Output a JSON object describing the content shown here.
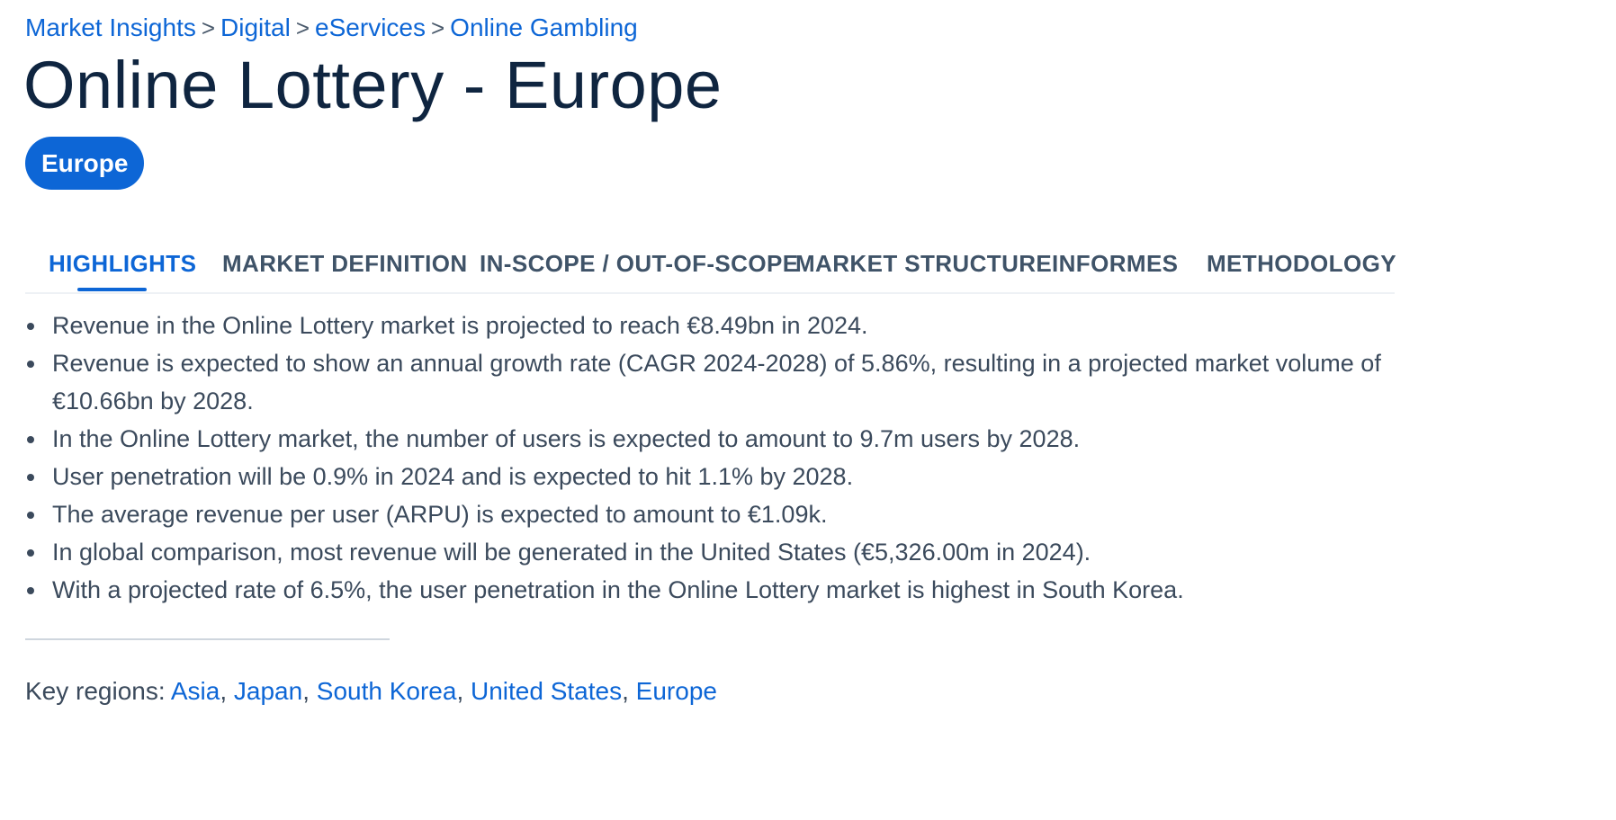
{
  "breadcrumb": {
    "items": [
      "Market Insights",
      "Digital",
      "eServices",
      "Online Gambling"
    ],
    "separator": ">"
  },
  "title": "Online Lottery - Europe",
  "region_pill": "Europe",
  "tabs": [
    {
      "label": "HIGHLIGHTS",
      "active": true
    },
    {
      "label": "MARKET DEFINITION",
      "active": false
    },
    {
      "label": "IN-SCOPE / OUT-OF-SCOPE",
      "active": false
    },
    {
      "label": "MARKET STRUCTURE",
      "active": false
    },
    {
      "label": "INFORMES",
      "active": false
    },
    {
      "label": "METHODOLOGY",
      "active": false
    }
  ],
  "highlights": [
    "Revenue in the Online Lottery market is projected to reach €8.49bn in 2024.",
    "Revenue is expected to show an annual growth rate (CAGR 2024-2028) of 5.86%, resulting in a projected market volume of €10.66bn by 2028.",
    "In the Online Lottery market, the number of users is expected to amount to 9.7m users by 2028.",
    "User penetration will be 0.9% in 2024 and is expected to hit 1.1% by 2028.",
    "The average revenue per user (ARPU) is expected to amount to €1.09k.",
    "In global comparison, most revenue will be generated in the United States (€5,326.00m in 2024).",
    "With a projected rate of 6.5%, the user penetration in the Online Lottery market is highest in South Korea."
  ],
  "key_regions": {
    "label": "Key regions:",
    "links": [
      "Asia",
      "Japan",
      "South Korea",
      "United States",
      "Europe"
    ]
  },
  "colors": {
    "accent": "#0d66d6",
    "title": "#0f2540",
    "body_text": "#3b4a5c",
    "tab_text": "#3f5368"
  }
}
